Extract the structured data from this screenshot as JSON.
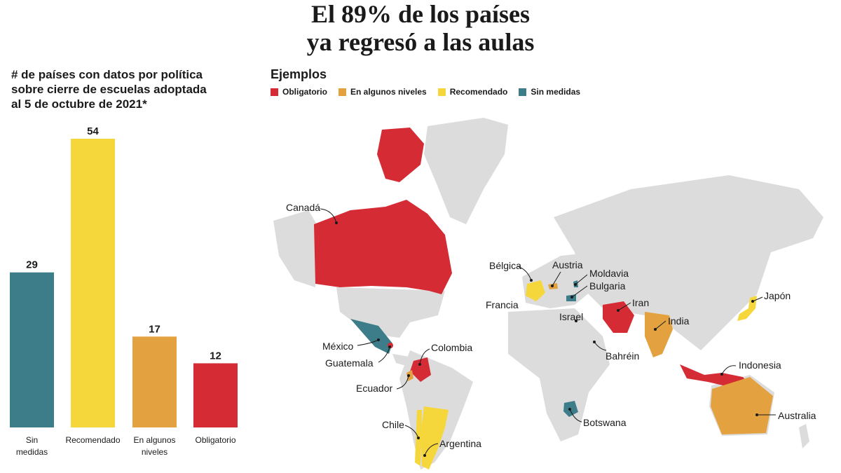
{
  "title": {
    "line1": "El 89% de los países",
    "line2": "ya regresó a las aulas"
  },
  "bar_heading": {
    "line1": "# de países con datos por política",
    "line2": "sobre cierre de escuelas adoptada",
    "line3": "al 5 de octubre de 2021*"
  },
  "colors": {
    "obligatorio": "#d52b35",
    "algunos": "#e3a23f",
    "recomendado": "#f6d73b",
    "sin": "#3d7d8a",
    "land": "#dcdcdc"
  },
  "chart_data": {
    "type": "bar",
    "categories": [
      "Sin\nmedidas",
      "Recomendado",
      "En algunos\nniveles",
      "Obligatorio"
    ],
    "values": [
      29,
      54,
      17,
      12
    ],
    "bar_colors": [
      "#3d7d8a",
      "#f6d73b",
      "#e3a23f",
      "#d52b35"
    ],
    "ylim": [
      0,
      54
    ]
  },
  "legend": {
    "title": "Ejemplos",
    "items": [
      {
        "label": "Obligatorio",
        "color": "#d52b35"
      },
      {
        "label": "En algunos niveles",
        "color": "#e3a23f"
      },
      {
        "label": "Recomendado",
        "color": "#f6d73b"
      },
      {
        "label": "Sin medidas",
        "color": "#3d7d8a"
      }
    ]
  },
  "map_labels": {
    "canada": "Canadá",
    "belgica": "Bélgica",
    "austria": "Austria",
    "moldavia": "Moldavia",
    "bulgaria": "Bulgaria",
    "francia": "Francia",
    "iran": "Iran",
    "israel": "Israel",
    "india": "India",
    "japon": "Japón",
    "mexico": "México",
    "guatemala": "Guatemala",
    "colombia": "Colombia",
    "ecuador": "Ecuador",
    "bahrein": "Bahréin",
    "indonesia": "Indonesia",
    "chile": "Chile",
    "argentina": "Argentina",
    "botswana": "Botswana",
    "australia": "Australia"
  }
}
